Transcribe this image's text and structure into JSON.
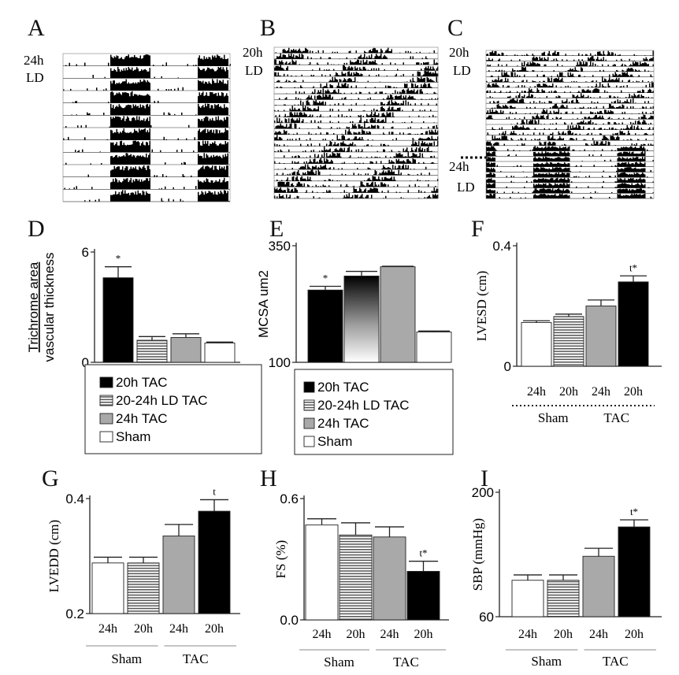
{
  "colors": {
    "black_bar": "#000000",
    "gray_bar": "#a9a9a9",
    "white_bar": "#ffffff",
    "stripe_bar": "#555555",
    "axis": "#222222"
  },
  "actograms": [
    {
      "letter": "A",
      "labels_top": [
        "24h",
        "LD"
      ],
      "labels_bottom": [],
      "pattern": "entrained24"
    },
    {
      "letter": "B",
      "labels_top": [
        "20h",
        "LD"
      ],
      "labels_bottom": [],
      "pattern": "freerun20"
    },
    {
      "letter": "C",
      "labels_top": [
        "20h",
        "LD"
      ],
      "labels_bottom": [
        "24h",
        "LD"
      ],
      "pattern": "switch"
    }
  ],
  "legend_items": [
    "20h TAC",
    "20-24h LD TAC",
    "24h TAC",
    "Sham"
  ],
  "chart_data": [
    {
      "panel": "D",
      "type": "bar",
      "ylabel_top": "Trichrome area",
      "ylabel_bottom": "vascular thickness",
      "yticks": [
        "6",
        "0"
      ],
      "ylim": [
        0,
        6
      ],
      "categories": [
        "20h TAC",
        "20-24h LD TAC",
        "24h TAC",
        "Sham"
      ],
      "values": [
        4.6,
        1.2,
        1.35,
        1.05
      ],
      "errors": [
        0.6,
        0.2,
        0.2,
        0.05
      ],
      "fills": [
        "black",
        "stripe",
        "gray",
        "white"
      ],
      "annotations": [
        "*",
        "",
        "",
        ""
      ]
    },
    {
      "panel": "E",
      "type": "bar",
      "ylabel": "MCSA um2",
      "yticks": [
        "350",
        "100"
      ],
      "ylim": [
        100,
        350
      ],
      "categories": [
        "20h TAC",
        "20-24h LD TAC",
        "24h TAC",
        "Sham"
      ],
      "values": [
        255,
        285,
        305,
        165
      ],
      "errors": [
        8,
        10,
        1,
        2
      ],
      "fills": [
        "black",
        "gradient",
        "gray",
        "white"
      ],
      "annotations": [
        "*",
        "",
        "",
        ""
      ]
    },
    {
      "panel": "F",
      "type": "bar",
      "ylabel": "LVESD (cm)",
      "yticks": [
        "0.4",
        "0"
      ],
      "ylim": [
        0,
        0.4
      ],
      "categories": [
        "24h",
        "20h",
        "24h",
        "20h"
      ],
      "groups": [
        "Sham",
        "TAC"
      ],
      "values": [
        0.145,
        0.165,
        0.2,
        0.28
      ],
      "errors": [
        0.006,
        0.008,
        0.02,
        0.02
      ],
      "fills": [
        "white",
        "stripe",
        "gray",
        "black"
      ],
      "annotations": [
        "",
        "",
        "",
        "t*"
      ]
    },
    {
      "panel": "G",
      "type": "bar",
      "ylabel": "LVEDD (cm)",
      "yticks": [
        "0.4",
        "0.2"
      ],
      "ylim": [
        0.2,
        0.4
      ],
      "categories": [
        "24h",
        "20h",
        "24h",
        "20h"
      ],
      "groups": [
        "Sham",
        "TAC"
      ],
      "values": [
        0.288,
        0.288,
        0.335,
        0.378
      ],
      "errors": [
        0.01,
        0.01,
        0.02,
        0.02
      ],
      "fills": [
        "white",
        "stripe",
        "gray",
        "black"
      ],
      "annotations": [
        "",
        "",
        "",
        "t"
      ]
    },
    {
      "panel": "H",
      "type": "bar",
      "ylabel": "FS (%)",
      "yticks": [
        "0.6",
        "0.0"
      ],
      "ylim": [
        0,
        0.6
      ],
      "categories": [
        "24h",
        "20h",
        "24h",
        "20h"
      ],
      "groups": [
        "Sham",
        "TAC"
      ],
      "values": [
        0.47,
        0.42,
        0.41,
        0.24
      ],
      "errors": [
        0.03,
        0.06,
        0.05,
        0.05
      ],
      "fills": [
        "white",
        "stripe",
        "gray",
        "black"
      ],
      "annotations": [
        "",
        "",
        "",
        "t*"
      ]
    },
    {
      "panel": "I",
      "type": "bar",
      "ylabel": "SBP (mmHg)",
      "yticks": [
        "200",
        "60"
      ],
      "ylim": [
        60,
        200
      ],
      "categories": [
        "24h",
        "20h",
        "24h",
        "20h"
      ],
      "groups": [
        "Sham",
        "TAC"
      ],
      "values": [
        101,
        101,
        128,
        161
      ],
      "errors": [
        6,
        6,
        9,
        8
      ],
      "fills": [
        "white",
        "stripe",
        "gray",
        "black"
      ],
      "annotations": [
        "",
        "",
        "",
        "t*"
      ]
    }
  ]
}
